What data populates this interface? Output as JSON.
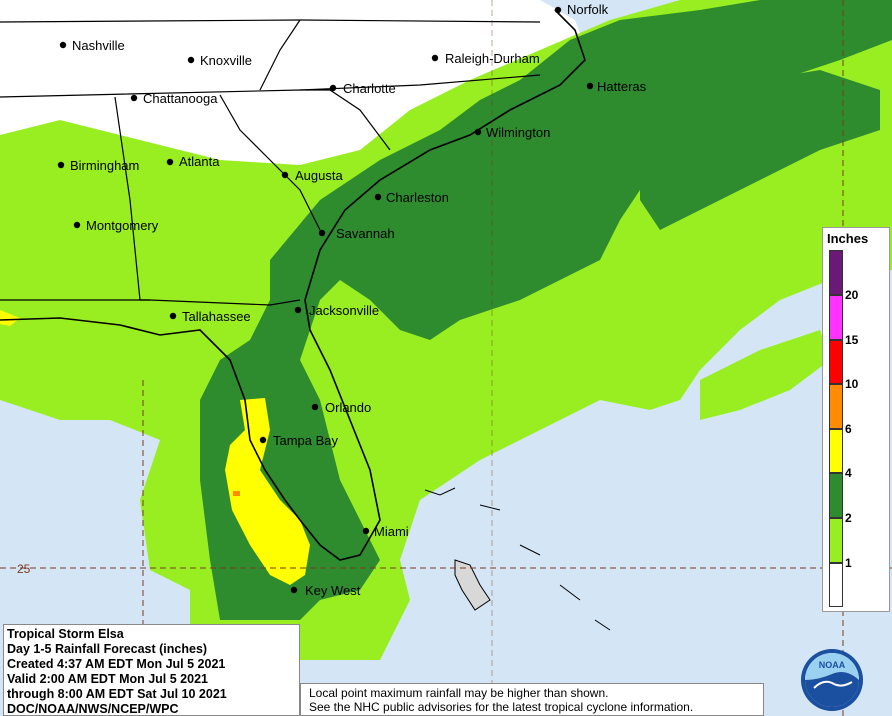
{
  "title": {
    "line1": "Tropical Storm Elsa",
    "line2": "Day 1-5 Rainfall Forecast (inches)",
    "line3": "Created 4:37 AM EDT Mon Jul 5 2021",
    "line4": "Valid 2:00 AM EDT Mon Jul 5 2021",
    "line5": "through 8:00 AM EDT Sat Jul 10 2021",
    "line6": "DOC/NOAA/NWS/NCEP/WPC"
  },
  "notes": {
    "line1": "Local point maximum rainfall may be higher than shown.",
    "line2": "See the NHC public advisories for the latest tropical cyclone information."
  },
  "legend": {
    "title": "Inches",
    "ticks": [
      "20",
      "15",
      "10",
      "6",
      "4",
      "2",
      "1"
    ],
    "colors": [
      "#6a1a74",
      "#ff33ff",
      "#ff0000",
      "#ff8c00",
      "#ffff00",
      "#2e8b2e",
      "#99ee22",
      "#ffffff"
    ]
  },
  "colors": {
    "ocean": "#d4e6f6",
    "land_dry": "#ffffff",
    "rain_1": "#99ee22",
    "rain_2": "#2e8b2e",
    "rain_4": "#ffff00",
    "rain_6": "#ff8c00"
  },
  "gridline_label": "25",
  "cities": [
    {
      "name": "Nashville"
    },
    {
      "name": "Knoxville"
    },
    {
      "name": "Chattanooga"
    },
    {
      "name": "Charlotte"
    },
    {
      "name": "Raleigh-Durham"
    },
    {
      "name": "Norfolk"
    },
    {
      "name": "Hatteras"
    },
    {
      "name": "Wilmington"
    },
    {
      "name": "Birmingham"
    },
    {
      "name": "Atlanta"
    },
    {
      "name": "Augusta"
    },
    {
      "name": "Charleston"
    },
    {
      "name": "Montgomery"
    },
    {
      "name": "Savannah"
    },
    {
      "name": "Tallahassee"
    },
    {
      "name": "Jacksonville"
    },
    {
      "name": "Orlando"
    },
    {
      "name": "Tampa Bay"
    },
    {
      "name": "Miami"
    },
    {
      "name": "Key West"
    }
  ],
  "logo_text": "NOAA"
}
